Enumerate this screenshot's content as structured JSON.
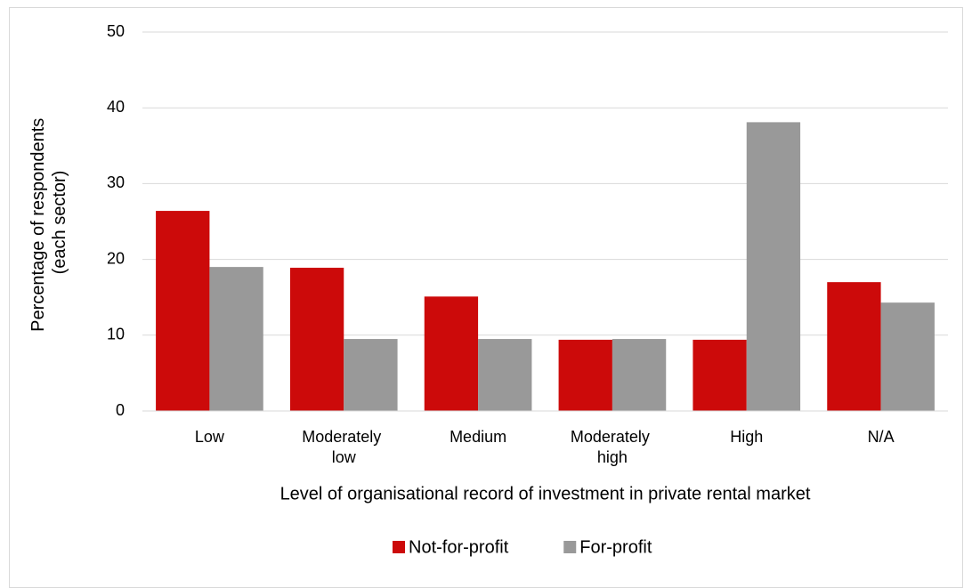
{
  "chart_data": {
    "type": "bar",
    "categories": [
      "Low",
      "Moderately low",
      "Medium",
      "Moderately high",
      "High",
      "N/A"
    ],
    "series": [
      {
        "name": "Not-for-profit",
        "color": "#cc0a0a",
        "values": [
          26.4,
          18.9,
          15.1,
          9.4,
          9.4,
          17.0
        ]
      },
      {
        "name": "For-profit",
        "color": "#999999",
        "values": [
          19.0,
          9.5,
          9.5,
          9.5,
          38.1,
          14.3
        ]
      }
    ],
    "ylim": [
      0,
      50
    ],
    "yticks": [
      0,
      10,
      20,
      30,
      40,
      50
    ],
    "grid": true,
    "x_label": "Level of organisational record of investment in private rental market",
    "y_label": "Percentage of respondents (each sector)",
    "legend": "bottom"
  }
}
